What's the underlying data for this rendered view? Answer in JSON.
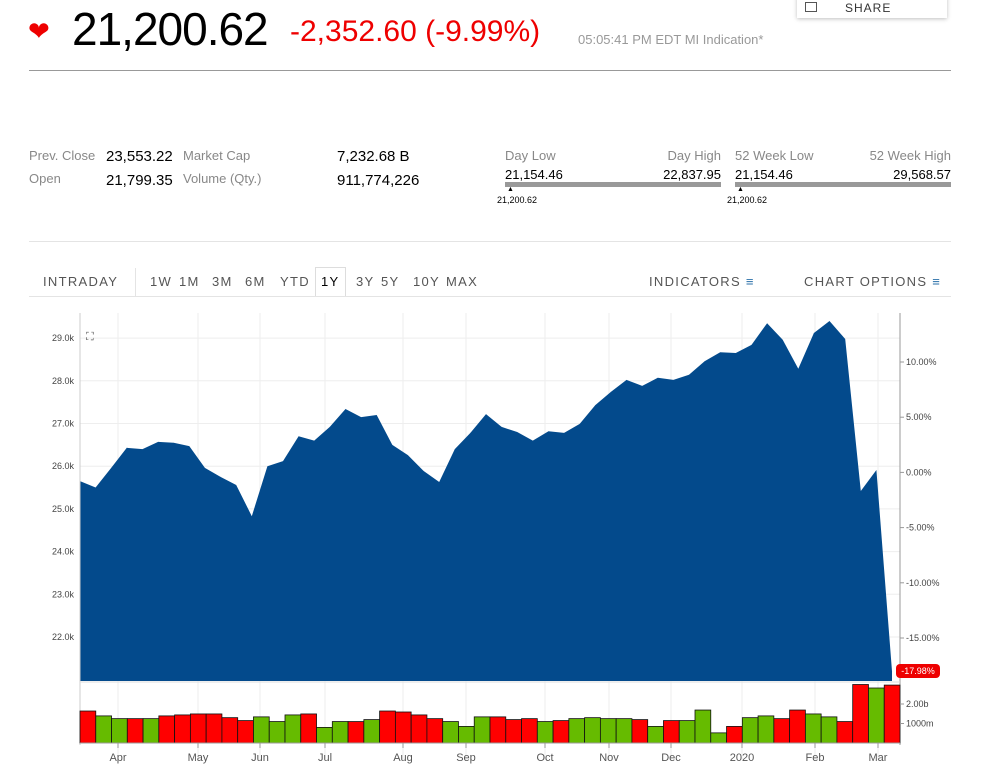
{
  "header": {
    "share_label": "SHARE",
    "direction_icon": "down-arrow-icon",
    "price": "21,200.62",
    "change": "-2,352.60 (-9.99%)",
    "timestamp": "05:05:41 PM EDT MI Indication*"
  },
  "stats": {
    "prev_close_label": "Prev. Close",
    "prev_close": "23,553.22",
    "open_label": "Open",
    "open": "21,799.35",
    "market_cap_label": "Market Cap",
    "market_cap": "7,232.68 B",
    "volume_label": "Volume (Qty.)",
    "volume": "911,774,226"
  },
  "ranges": {
    "day_low_label": "Day Low",
    "day_high_label": "Day High",
    "day_low": "21,154.46",
    "day_high": "22,837.95",
    "day_current": "21,200.62",
    "wk_low_label": "52 Week Low",
    "wk_high_label": "52 Week High",
    "wk_low": "21,154.46",
    "wk_high": "29,568.57",
    "wk_current": "21,200.62"
  },
  "tabs": {
    "intraday": "INTRADAY",
    "periods": [
      "1W",
      "1M",
      "3M",
      "6M",
      "YTD",
      "1Y",
      "3Y",
      "5Y",
      "10Y",
      "MAX"
    ],
    "selected": "1Y",
    "indicators": "INDICATORS",
    "chart_options": "CHART OPTIONS"
  },
  "colors": {
    "area": "#034a8c",
    "up": "#66bb00",
    "down": "#ff0000",
    "accent_red": "#e00000"
  },
  "chart_data": {
    "type": "area",
    "yticks_left": [
      "29.0k",
      "28.0k",
      "27.0k",
      "26.0k",
      "25.0k",
      "24.0k",
      "23.0k",
      "22.0k"
    ],
    "yticks_right": [
      "10.00%",
      "5.00%",
      "0.00%",
      "-5.00%",
      "-10.00%",
      "-15.00%"
    ],
    "xticks": [
      "Apr",
      "May",
      "Jun",
      "Jul",
      "Aug",
      "Sep",
      "Oct",
      "Nov",
      "Dec",
      "2020",
      "Feb",
      "Mar"
    ],
    "ylim_left": [
      21000,
      29800
    ],
    "last_change_badge": "-17.98%",
    "price_k": [
      25.65,
      25.5,
      25.96,
      26.43,
      26.4,
      26.57,
      26.55,
      26.47,
      25.96,
      25.75,
      25.56,
      24.83,
      26.0,
      26.12,
      26.7,
      26.6,
      26.92,
      27.34,
      27.15,
      27.2,
      26.5,
      26.26,
      25.89,
      25.63,
      26.4,
      26.78,
      27.22,
      26.92,
      26.8,
      26.6,
      26.82,
      26.78,
      26.99,
      27.43,
      27.74,
      28.02,
      27.88,
      28.07,
      28.02,
      28.14,
      28.46,
      28.67,
      28.65,
      28.84,
      29.35,
      28.96,
      28.28,
      29.12,
      29.4,
      28.98,
      25.42,
      25.91,
      21.2
    ],
    "volume_ticks": [
      "2.00b",
      "1000m"
    ],
    "volume_b": [
      1.64,
      1.39,
      1.25,
      1.25,
      1.25,
      1.39,
      1.44,
      1.49,
      1.49,
      1.3,
      1.15,
      1.34,
      1.1,
      1.44,
      1.49,
      0.8,
      1.1,
      1.1,
      1.2,
      1.64,
      1.59,
      1.44,
      1.25,
      1.1,
      0.85,
      1.34,
      1.34,
      1.2,
      1.25,
      1.1,
      1.15,
      1.25,
      1.3,
      1.25,
      1.25,
      1.2,
      0.85,
      1.15,
      1.15,
      1.69,
      0.52,
      0.85,
      1.3,
      1.39,
      1.25,
      1.69,
      1.49,
      1.34,
      1.1,
      3.0,
      2.82,
      2.97
    ],
    "volume_dir": [
      "down",
      "up",
      "up",
      "down",
      "up",
      "down",
      "down",
      "down",
      "down",
      "down",
      "down",
      "up",
      "up",
      "up",
      "down",
      "up",
      "up",
      "down",
      "up",
      "down",
      "down",
      "down",
      "down",
      "up",
      "up",
      "up",
      "down",
      "down",
      "down",
      "up",
      "down",
      "up",
      "up",
      "up",
      "up",
      "down",
      "up",
      "down",
      "up",
      "up",
      "up",
      "down",
      "up",
      "up",
      "down",
      "down",
      "up",
      "up",
      "down",
      "down",
      "up",
      "down"
    ]
  }
}
